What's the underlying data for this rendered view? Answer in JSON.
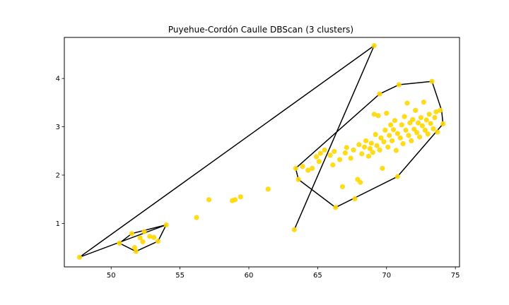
{
  "chart_data": {
    "type": "scatter",
    "title": "Puyehue-Cordón Caulle DBScan (3 clusters)",
    "xlabel": "",
    "ylabel": "",
    "xlim": [
      46.6,
      75.3
    ],
    "ylim": [
      0.1,
      4.85
    ],
    "xticks": [
      50,
      55,
      60,
      65,
      70,
      75
    ],
    "yticks": [
      1,
      2,
      3,
      4
    ],
    "grid": false,
    "point_color": "#ffd700",
    "hull_color": "#000000",
    "series": [
      {
        "points": [
          [
            47.7,
            0.3
          ],
          [
            50.6,
            0.59
          ],
          [
            51.5,
            0.79
          ],
          [
            51.8,
            0.42
          ],
          [
            51.7,
            0.5
          ],
          [
            52.1,
            0.7
          ],
          [
            52.4,
            0.83
          ],
          [
            52.3,
            0.62
          ],
          [
            52.8,
            0.73
          ],
          [
            53.1,
            0.71
          ],
          [
            53.4,
            0.63
          ],
          [
            54.0,
            0.97
          ],
          [
            56.2,
            1.12
          ],
          [
            57.1,
            1.49
          ],
          [
            58.8,
            1.47
          ],
          [
            59.0,
            1.49
          ],
          [
            59.4,
            1.55
          ],
          [
            61.4,
            1.71
          ],
          [
            63.3,
            0.87
          ],
          [
            69.1,
            4.68
          ],
          [
            63.4,
            2.14
          ],
          [
            63.6,
            1.91
          ],
          [
            63.9,
            2.18
          ],
          [
            64.3,
            2.1
          ],
          [
            64.6,
            2.14
          ],
          [
            64.9,
            2.38
          ],
          [
            65.1,
            2.28
          ],
          [
            65.2,
            2.45
          ],
          [
            65.5,
            2.52
          ],
          [
            65.9,
            2.41
          ],
          [
            66.1,
            2.21
          ],
          [
            66.2,
            2.49
          ],
          [
            66.3,
            1.33
          ],
          [
            66.6,
            2.32
          ],
          [
            66.8,
            1.76
          ],
          [
            67.0,
            2.46
          ],
          [
            67.1,
            2.57
          ],
          [
            67.4,
            2.35
          ],
          [
            67.6,
            2.52
          ],
          [
            67.7,
            1.51
          ],
          [
            67.9,
            1.91
          ],
          [
            68.0,
            2.63
          ],
          [
            68.1,
            1.85
          ],
          [
            68.2,
            2.44
          ],
          [
            68.4,
            2.58
          ],
          [
            68.5,
            2.71
          ],
          [
            68.7,
            2.39
          ],
          [
            68.8,
            2.55
          ],
          [
            68.9,
            2.66
          ],
          [
            69.0,
            2.47
          ],
          [
            69.1,
            3.26
          ],
          [
            69.2,
            2.84
          ],
          [
            69.3,
            2.61
          ],
          [
            69.4,
            3.23
          ],
          [
            69.5,
            3.68
          ],
          [
            69.5,
            2.52
          ],
          [
            69.6,
            2.77
          ],
          [
            69.7,
            2.14
          ],
          [
            69.8,
            2.69
          ],
          [
            69.9,
            2.93
          ],
          [
            70.0,
            3.28
          ],
          [
            70.1,
            2.58
          ],
          [
            70.2,
            2.82
          ],
          [
            70.3,
            3.04
          ],
          [
            70.4,
            2.71
          ],
          [
            70.5,
            2.94
          ],
          [
            70.6,
            3.13
          ],
          [
            70.7,
            2.51
          ],
          [
            70.8,
            1.97
          ],
          [
            70.8,
            2.86
          ],
          [
            70.9,
            3.87
          ],
          [
            71.0,
            2.77
          ],
          [
            71.1,
            3.04
          ],
          [
            71.2,
            2.65
          ],
          [
            71.3,
            3.21
          ],
          [
            71.4,
            2.93
          ],
          [
            71.5,
            3.49
          ],
          [
            71.6,
            2.82
          ],
          [
            71.7,
            3.08
          ],
          [
            71.8,
            2.71
          ],
          [
            71.9,
            3.15
          ],
          [
            72.0,
            2.95
          ],
          [
            72.1,
            3.34
          ],
          [
            72.2,
            2.88
          ],
          [
            72.3,
            3.08
          ],
          [
            72.4,
            2.79
          ],
          [
            72.5,
            3.19
          ],
          [
            72.6,
            3.02
          ],
          [
            72.7,
            3.51
          ],
          [
            72.8,
            2.93
          ],
          [
            72.9,
            3.14
          ],
          [
            73.0,
            2.85
          ],
          [
            73.1,
            3.26
          ],
          [
            73.2,
            3.07
          ],
          [
            73.3,
            3.94
          ],
          [
            73.4,
            2.96
          ],
          [
            73.5,
            3.19
          ],
          [
            73.6,
            3.31
          ],
          [
            73.7,
            2.89
          ],
          [
            73.9,
            3.34
          ],
          [
            74.1,
            3.06
          ]
        ]
      }
    ],
    "hulls": [
      [
        [
          47.7,
          0.3
        ],
        [
          69.1,
          4.68
        ],
        [
          63.3,
          0.87
        ]
      ],
      [
        [
          47.7,
          0.3
        ],
        [
          54.0,
          0.97
        ],
        [
          53.4,
          0.63
        ],
        [
          51.8,
          0.42
        ],
        [
          50.6,
          0.59
        ],
        [
          51.5,
          0.79
        ],
        [
          54.0,
          0.97
        ]
      ],
      [
        [
          63.4,
          2.14
        ],
        [
          69.5,
          3.68
        ],
        [
          70.9,
          3.87
        ],
        [
          73.3,
          3.94
        ],
        [
          74.0,
          3.34
        ],
        [
          74.1,
          3.06
        ],
        [
          70.8,
          1.97
        ],
        [
          66.3,
          1.33
        ],
        [
          63.6,
          1.91
        ],
        [
          63.4,
          2.14
        ]
      ]
    ]
  }
}
